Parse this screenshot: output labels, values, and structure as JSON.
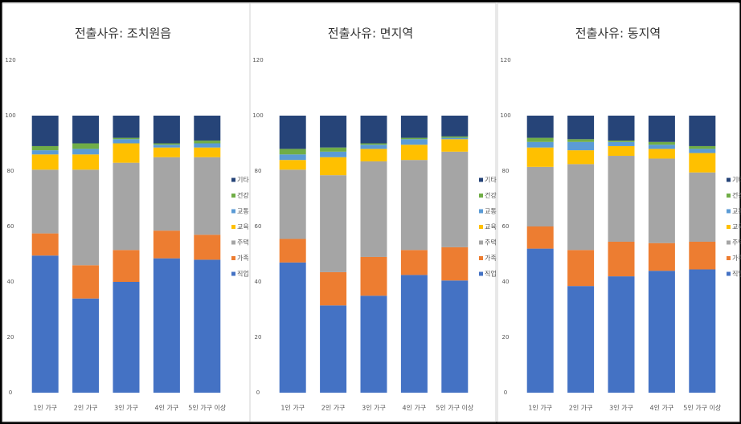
{
  "chart_data": [
    {
      "type": "stacked_bar",
      "title": "전출사유: 조치원읍",
      "categories": [
        "1인 가구",
        "2인 가구",
        "3인 가구",
        "4인 가구",
        "5인 가구 이상"
      ],
      "ylim": [
        0,
        120
      ],
      "yticks": [
        0,
        20,
        40,
        60,
        80,
        100,
        120
      ],
      "grid": false,
      "legend": "right",
      "series": [
        {
          "name": "직업",
          "color": "#4472c4",
          "values": [
            49.5,
            34,
            40,
            48.5,
            48
          ]
        },
        {
          "name": "가족",
          "color": "#ed7d31",
          "values": [
            8,
            12,
            11.5,
            10,
            9
          ]
        },
        {
          "name": "주택",
          "color": "#a5a5a5",
          "values": [
            23,
            34.5,
            31.5,
            26.5,
            28
          ]
        },
        {
          "name": "교육",
          "color": "#ffc000",
          "values": [
            5.5,
            5.5,
            7,
            3.5,
            3.5
          ]
        },
        {
          "name": "교통",
          "color": "#5b9bd5",
          "values": [
            1.5,
            2,
            1.5,
            1,
            1.5
          ]
        },
        {
          "name": "건강",
          "color": "#70ad47",
          "values": [
            1.5,
            2,
            0.5,
            0.5,
            1
          ]
        },
        {
          "name": "기타",
          "color": "#264478",
          "values": [
            11,
            10,
            8,
            10,
            9
          ]
        }
      ]
    },
    {
      "type": "stacked_bar",
      "title": "전출사유: 면지역",
      "categories": [
        "1인 가구",
        "2인 가구",
        "3인 가구",
        "4인 가구",
        "5인 가구 이상"
      ],
      "ylim": [
        0,
        120
      ],
      "yticks": [
        0,
        20,
        40,
        60,
        80,
        100,
        120
      ],
      "grid": false,
      "legend": "right",
      "series": [
        {
          "name": "직업",
          "color": "#4472c4",
          "values": [
            47,
            31.5,
            35,
            42.5,
            40.5
          ]
        },
        {
          "name": "가족",
          "color": "#ed7d31",
          "values": [
            8.5,
            12,
            14,
            9,
            12
          ]
        },
        {
          "name": "주택",
          "color": "#a5a5a5",
          "values": [
            25,
            35,
            34.5,
            32.5,
            34.5
          ]
        },
        {
          "name": "교육",
          "color": "#ffc000",
          "values": [
            3.5,
            6.5,
            4.5,
            5.5,
            4.5
          ]
        },
        {
          "name": "교통",
          "color": "#5b9bd5",
          "values": [
            2,
            2,
            1.5,
            2,
            0.5
          ]
        },
        {
          "name": "건강",
          "color": "#70ad47",
          "values": [
            2,
            1.5,
            0.5,
            0.5,
            0.5
          ]
        },
        {
          "name": "기타",
          "color": "#264478",
          "values": [
            12,
            11.5,
            10,
            8,
            7.5
          ]
        }
      ]
    },
    {
      "type": "stacked_bar",
      "title": "전출사유: 동지역",
      "categories": [
        "1인 가구",
        "2인 가구",
        "3인 가구",
        "4인 가구",
        "5인 가구 이상"
      ],
      "ylim": [
        0,
        120
      ],
      "yticks": [
        0,
        20,
        40,
        60,
        80,
        100,
        120
      ],
      "grid": false,
      "legend": "right",
      "series": [
        {
          "name": "직업",
          "color": "#4472c4",
          "values": [
            52,
            38.5,
            42,
            44,
            44.5
          ]
        },
        {
          "name": "가족",
          "color": "#ed7d31",
          "values": [
            8,
            13,
            12.5,
            10,
            10
          ]
        },
        {
          "name": "주택",
          "color": "#a5a5a5",
          "values": [
            21.5,
            31,
            31,
            30.5,
            25
          ]
        },
        {
          "name": "교육",
          "color": "#ffc000",
          "values": [
            7,
            5,
            3.5,
            3.5,
            7
          ]
        },
        {
          "name": "교통",
          "color": "#5b9bd5",
          "values": [
            2,
            3,
            1.5,
            1.5,
            1.5
          ]
        },
        {
          "name": "건강",
          "color": "#70ad47",
          "values": [
            1.5,
            1,
            0.5,
            1,
            1
          ]
        },
        {
          "name": "기타",
          "color": "#264478",
          "values": [
            8,
            8.5,
            9,
            9.5,
            11
          ]
        }
      ]
    }
  ]
}
